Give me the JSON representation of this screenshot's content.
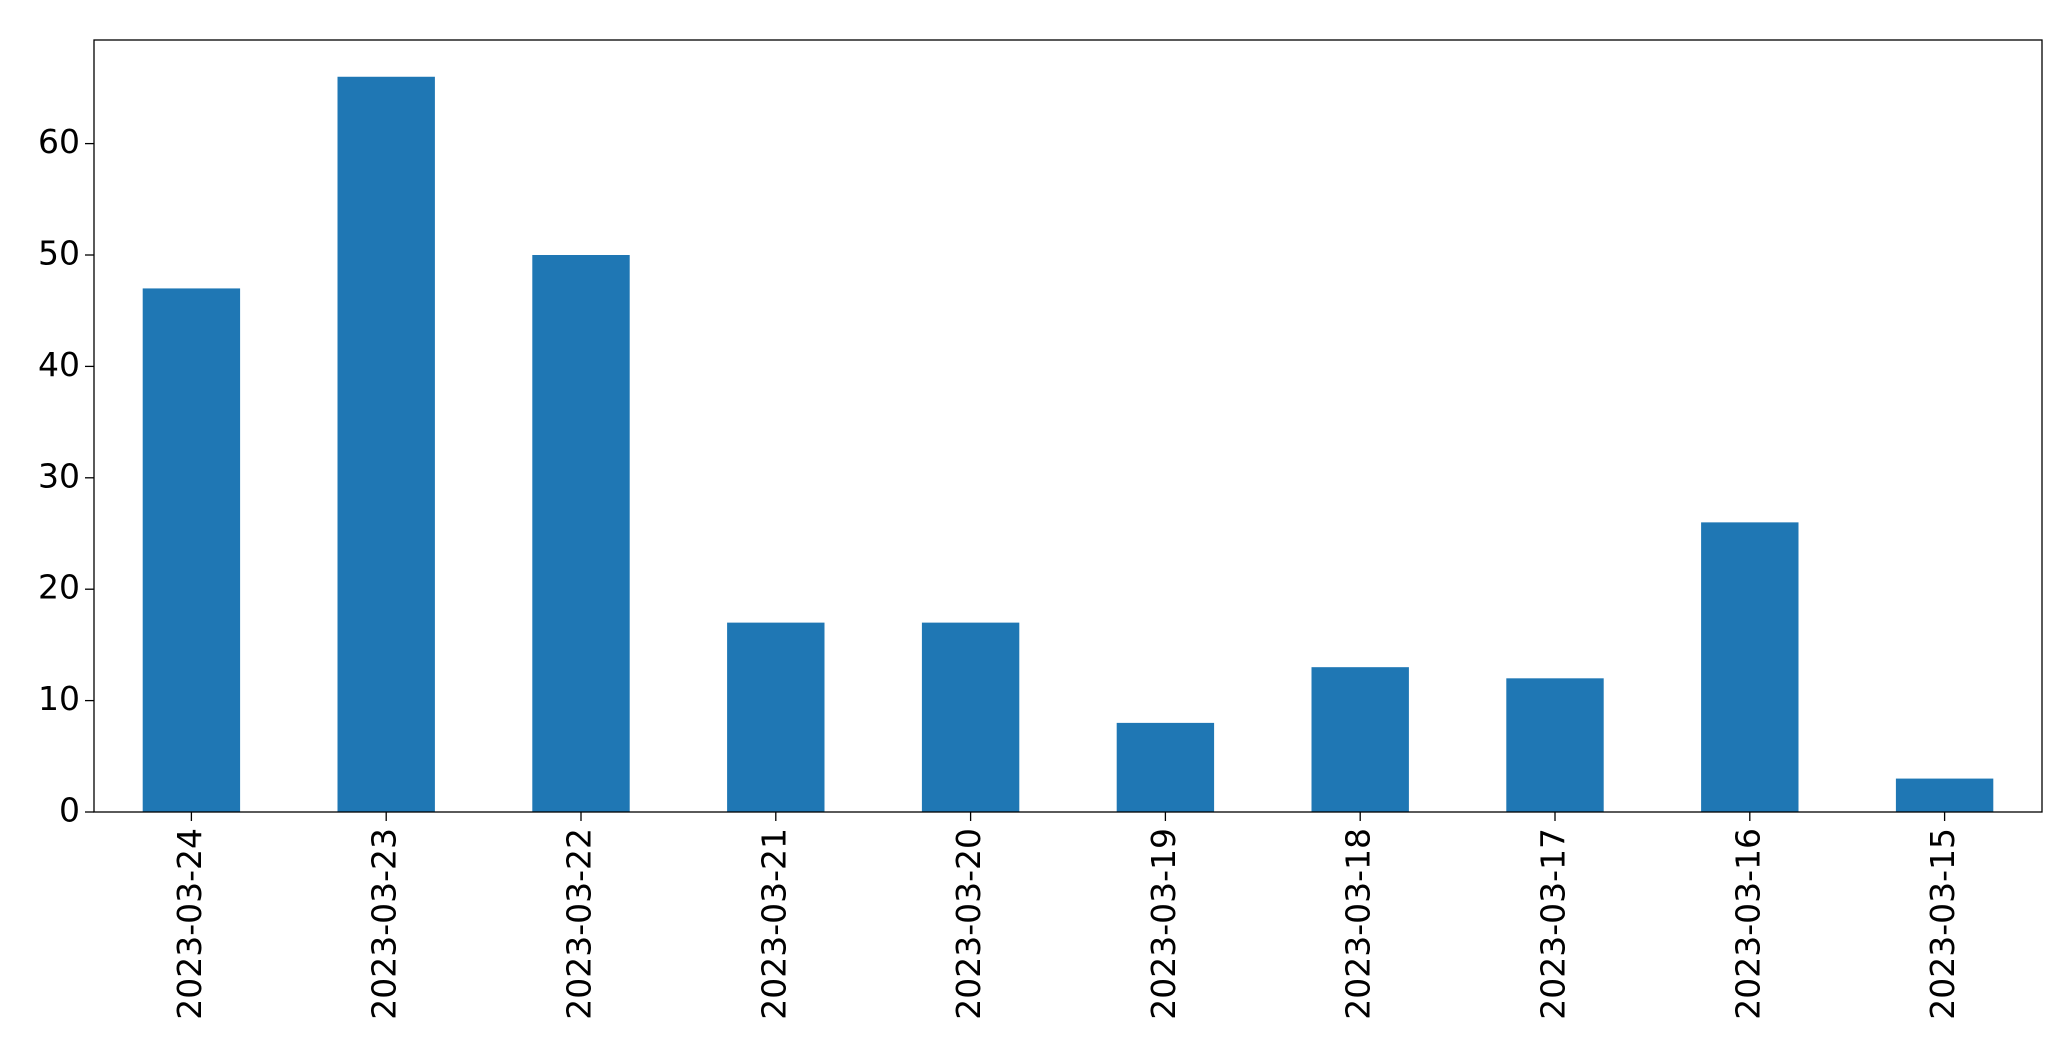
{
  "chart_data": {
    "type": "bar",
    "categories": [
      "2023-03-24",
      "2023-03-23",
      "2023-03-22",
      "2023-03-21",
      "2023-03-20",
      "2023-03-19",
      "2023-03-18",
      "2023-03-17",
      "2023-03-16",
      "2023-03-15"
    ],
    "values": [
      47,
      66,
      50,
      17,
      17,
      8,
      13,
      12,
      26,
      3
    ],
    "color": "#1f77b4",
    "ylim": [
      0,
      69.3
    ],
    "yticks": [
      0,
      10,
      20,
      30,
      40,
      50,
      60
    ],
    "grid": false
  }
}
